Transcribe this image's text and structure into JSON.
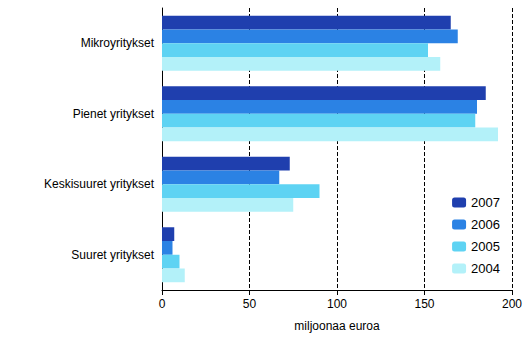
{
  "chart_data": {
    "type": "bar",
    "orientation": "horizontal",
    "categories": [
      "Mikroyritykset",
      "Pienet yritykset",
      "Keskisuuret yritykset",
      "Suuret yritykset"
    ],
    "series": [
      {
        "name": "2007",
        "color": "#1f3fae",
        "values": [
          165,
          185,
          73,
          7
        ]
      },
      {
        "name": "2006",
        "color": "#2b82e4",
        "values": [
          169,
          180,
          67,
          6
        ]
      },
      {
        "name": "2005",
        "color": "#5ed3f3",
        "values": [
          152,
          179,
          90,
          10
        ]
      },
      {
        "name": "2004",
        "color": "#b3f1f9",
        "values": [
          159,
          192,
          75,
          13
        ]
      }
    ],
    "x_label": "miljoonaa euroa",
    "xlim": [
      0,
      200
    ],
    "xticks": [
      0,
      50,
      100,
      150,
      200
    ],
    "grid": true,
    "legend": "lower right"
  }
}
